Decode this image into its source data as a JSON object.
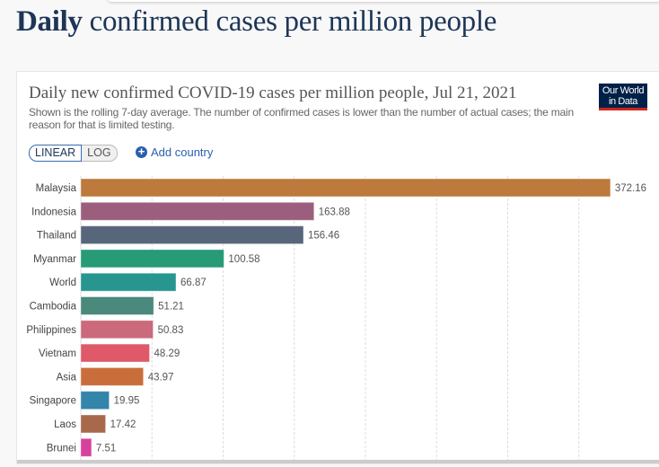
{
  "page": {
    "heading_bold": "Daily",
    "heading_rest": " confirmed cases per million people"
  },
  "chart": {
    "title": "Daily new confirmed COVID-19 cases per million people, Jul 21, 2021",
    "subtitle": "Shown is the rolling 7-day average. The number of confirmed cases is lower than the number of actual cases; the main reason for that is limited testing.",
    "logo": "Our World in Data",
    "linear_label": "LINEAR",
    "log_label": "LOG",
    "add_country_label": "Add country"
  },
  "chart_data": {
    "type": "bar",
    "orientation": "horizontal",
    "title": "Daily new confirmed COVID-19 cases per million people, Jul 21, 2021",
    "scale": "linear",
    "grid": true,
    "gridlines": [
      50,
      100,
      150,
      200,
      250,
      300,
      350
    ],
    "categories": [
      "Malaysia",
      "Indonesia",
      "Thailand",
      "Myanmar",
      "World",
      "Cambodia",
      "Philippines",
      "Vietnam",
      "Asia",
      "Singapore",
      "Laos",
      "Brunei"
    ],
    "values": [
      372.16,
      163.88,
      156.46,
      100.58,
      66.87,
      51.21,
      50.83,
      48.29,
      43.97,
      19.95,
      17.42,
      7.51
    ],
    "colors": [
      "#bd7a3c",
      "#9b5f7d",
      "#58667c",
      "#279a76",
      "#26968f",
      "#4a897c",
      "#cb6a7b",
      "#df5969",
      "#c96e3b",
      "#3385a9",
      "#a7694a",
      "#d7409b"
    ]
  }
}
